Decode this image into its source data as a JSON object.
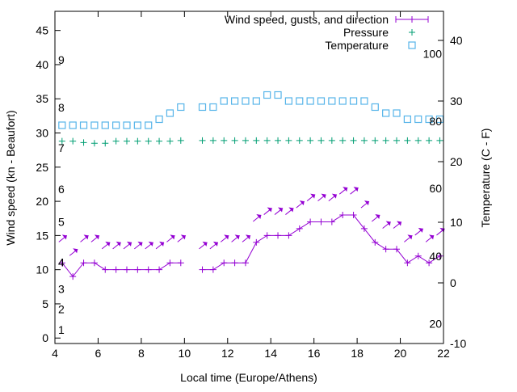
{
  "chart_data": {
    "type": "line",
    "xlabel": "Local time (Europe/Athens)",
    "ylabel": "Wind speed (kn - Beaufort)",
    "y2label": "Temperature (C - F)",
    "xlim": [
      4,
      22
    ],
    "ylim": [
      -0.8,
      47.8
    ],
    "y2lim": [
      -10,
      44.8
    ],
    "xticks": [
      "4",
      "6",
      "8",
      "10",
      "12",
      "14",
      "16",
      "18",
      "20",
      "22"
    ],
    "yticks": [
      "0",
      "5",
      "10",
      "15",
      "20",
      "25",
      "30",
      "35",
      "40",
      "45"
    ],
    "y2ticks": [
      "-10",
      "0",
      "10",
      "20",
      "30",
      "40"
    ],
    "grid": false,
    "legend": {
      "placement": "top-right",
      "entries": [
        "Wind speed, gusts, and direction",
        "Pressure",
        "Temperature"
      ]
    },
    "colors": {
      "wind": "#9400d3",
      "pressure": "#009e73",
      "temperature": "#56b4e9"
    },
    "beaufort_labels": [
      {
        "label": "1",
        "y": 1.2
      },
      {
        "label": "2",
        "y": 4.2
      },
      {
        "label": "3",
        "y": 7.2
      },
      {
        "label": "4",
        "y": 11.1
      },
      {
        "label": "5",
        "y": 17
      },
      {
        "label": "6",
        "y": 21.8
      },
      {
        "label": "7",
        "y": 27.8
      },
      {
        "label": "8",
        "y": 33.7
      },
      {
        "label": "9",
        "y": 40.7
      }
    ],
    "fahrenheit_labels": [
      {
        "label": "20",
        "y2": -6.7
      },
      {
        "label": "40",
        "y2": 4.4
      },
      {
        "label": "60",
        "y2": 15.6
      },
      {
        "label": "80",
        "y2": 26.7
      },
      {
        "label": "100",
        "y2": 37.8
      }
    ],
    "x": [
      4.33,
      4.83,
      5.33,
      5.83,
      6.33,
      6.83,
      7.33,
      7.83,
      8.33,
      8.83,
      9.33,
      9.83,
      10.83,
      11.33,
      11.83,
      12.33,
      12.83,
      13.33,
      13.83,
      14.33,
      14.83,
      15.33,
      15.83,
      16.33,
      16.83,
      17.33,
      17.83,
      18.33,
      18.83,
      19.33,
      19.83,
      20.33,
      20.83,
      21.33,
      21.83
    ],
    "series": [
      {
        "name": "Wind speed",
        "axis": "y",
        "values": [
          11,
          9,
          11,
          11,
          10,
          10,
          10,
          10,
          10,
          10,
          11,
          11,
          10,
          10,
          11,
          11,
          11,
          14,
          15,
          15,
          15,
          16,
          17,
          17,
          17,
          18,
          18,
          16,
          14,
          13,
          13,
          11,
          12,
          11,
          12
        ]
      },
      {
        "name": "Gusts",
        "axis": "y",
        "direction_deg": 225,
        "values": [
          15,
          13,
          15,
          15,
          14,
          14,
          14,
          14,
          14,
          14,
          15,
          15,
          14,
          14,
          15,
          15,
          15,
          18,
          19,
          19,
          19,
          20,
          21,
          21,
          21,
          22,
          22,
          20,
          18,
          17,
          17,
          15,
          16,
          15,
          16
        ]
      },
      {
        "name": "Pressure",
        "axis": "y",
        "values": [
          28.8,
          28.8,
          28.6,
          28.5,
          28.5,
          28.8,
          28.8,
          28.8,
          28.8,
          28.8,
          28.8,
          28.9,
          28.9,
          28.9,
          28.9,
          28.9,
          28.9,
          28.9,
          28.9,
          28.9,
          28.9,
          28.9,
          28.9,
          28.9,
          28.9,
          28.9,
          28.9,
          28.9,
          28.9,
          28.9,
          28.9,
          28.9,
          28.9,
          28.9,
          28.9
        ]
      },
      {
        "name": "Temperature",
        "axis": "y2",
        "values": [
          26,
          26,
          26,
          26,
          26,
          26,
          26,
          26,
          26,
          27,
          28,
          29,
          29,
          29,
          30,
          30,
          30,
          30,
          31,
          31,
          30,
          30,
          30,
          30,
          30,
          30,
          30,
          30,
          29,
          28,
          28,
          27,
          27,
          27,
          27
        ]
      }
    ]
  }
}
